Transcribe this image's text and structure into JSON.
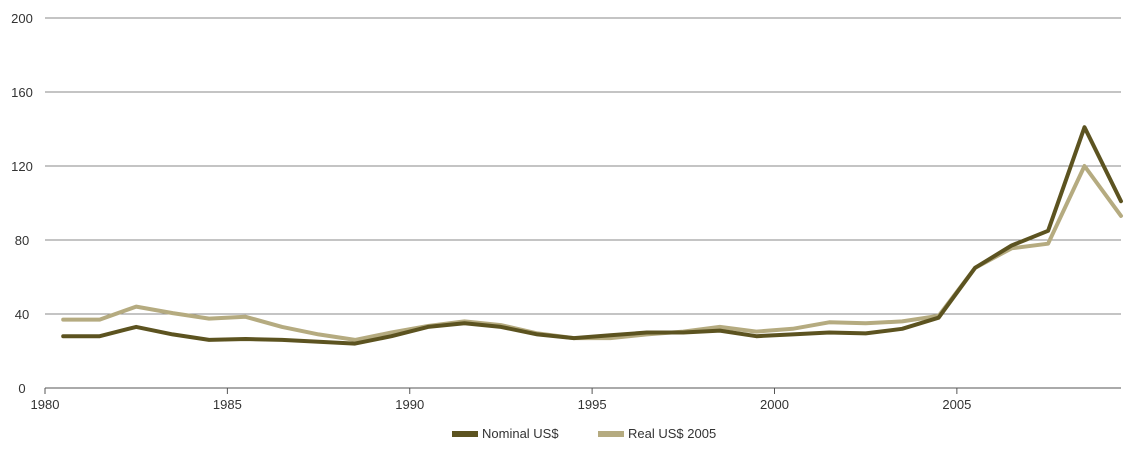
{
  "chart_data": {
    "type": "line",
    "title": "",
    "xlabel": "",
    "ylabel": "",
    "xlim": [
      1980,
      2009.5
    ],
    "ylim": [
      0,
      200
    ],
    "x_ticks": [
      "1980",
      "1985",
      "1990",
      "1995",
      "2000",
      "2005"
    ],
    "y_ticks": [
      "0",
      "40",
      "80",
      "120",
      "160",
      "200"
    ],
    "grid": true,
    "legend_position": "bottom-center",
    "x": [
      1980.5,
      1981.5,
      1982.5,
      1983.5,
      1984.5,
      1985.5,
      1986.5,
      1987.5,
      1988.5,
      1989.5,
      1990.5,
      1991.5,
      1992.5,
      1993.5,
      1994.5,
      1995.5,
      1996.5,
      1997.5,
      1998.5,
      1999.5,
      2000.5,
      2001.5,
      2002.5,
      2003.5,
      2004.5,
      2005.5,
      2006.5,
      2007.5,
      2008.5,
      2009.5
    ],
    "series": [
      {
        "name": "Nominal US$",
        "color": "#5c5320",
        "values": [
          28,
          28,
          33,
          29,
          26,
          26.5,
          26,
          25,
          24,
          28,
          33,
          35,
          33,
          29,
          27,
          28.5,
          30,
          30,
          31,
          28,
          29,
          30,
          29.5,
          32,
          38,
          65,
          77,
          85,
          141,
          101
        ]
      },
      {
        "name": "Real US$ 2005",
        "color": "#b5ab80",
        "values": [
          37,
          37,
          44,
          40.5,
          37.5,
          38.5,
          33,
          29,
          26,
          30,
          33.5,
          36,
          34,
          29.5,
          27,
          27,
          29,
          30.5,
          33,
          30.5,
          32,
          35.5,
          35,
          36,
          39,
          65,
          75.5,
          78,
          120,
          93
        ]
      }
    ]
  }
}
